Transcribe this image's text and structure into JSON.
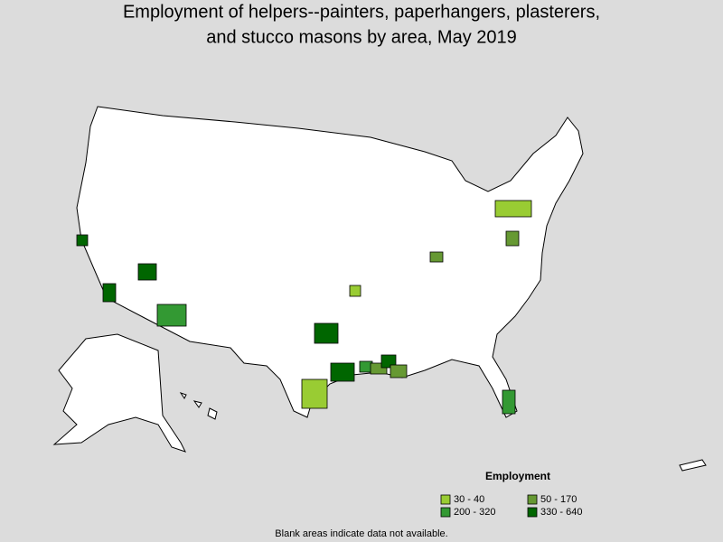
{
  "title_lines": [
    "Employment of helpers--painters, paperhangers, plasterers,",
    "and stucco masons by area, May 2019"
  ],
  "legend": {
    "title": "Employment",
    "items": [
      {
        "label": "30 - 40",
        "color": "#99cc33"
      },
      {
        "label": "50 - 170",
        "color": "#669933"
      },
      {
        "label": "200 - 320",
        "color": "#339933"
      },
      {
        "label": "330 - 640",
        "color": "#006600"
      }
    ]
  },
  "note": "Blank areas indicate data not available."
}
